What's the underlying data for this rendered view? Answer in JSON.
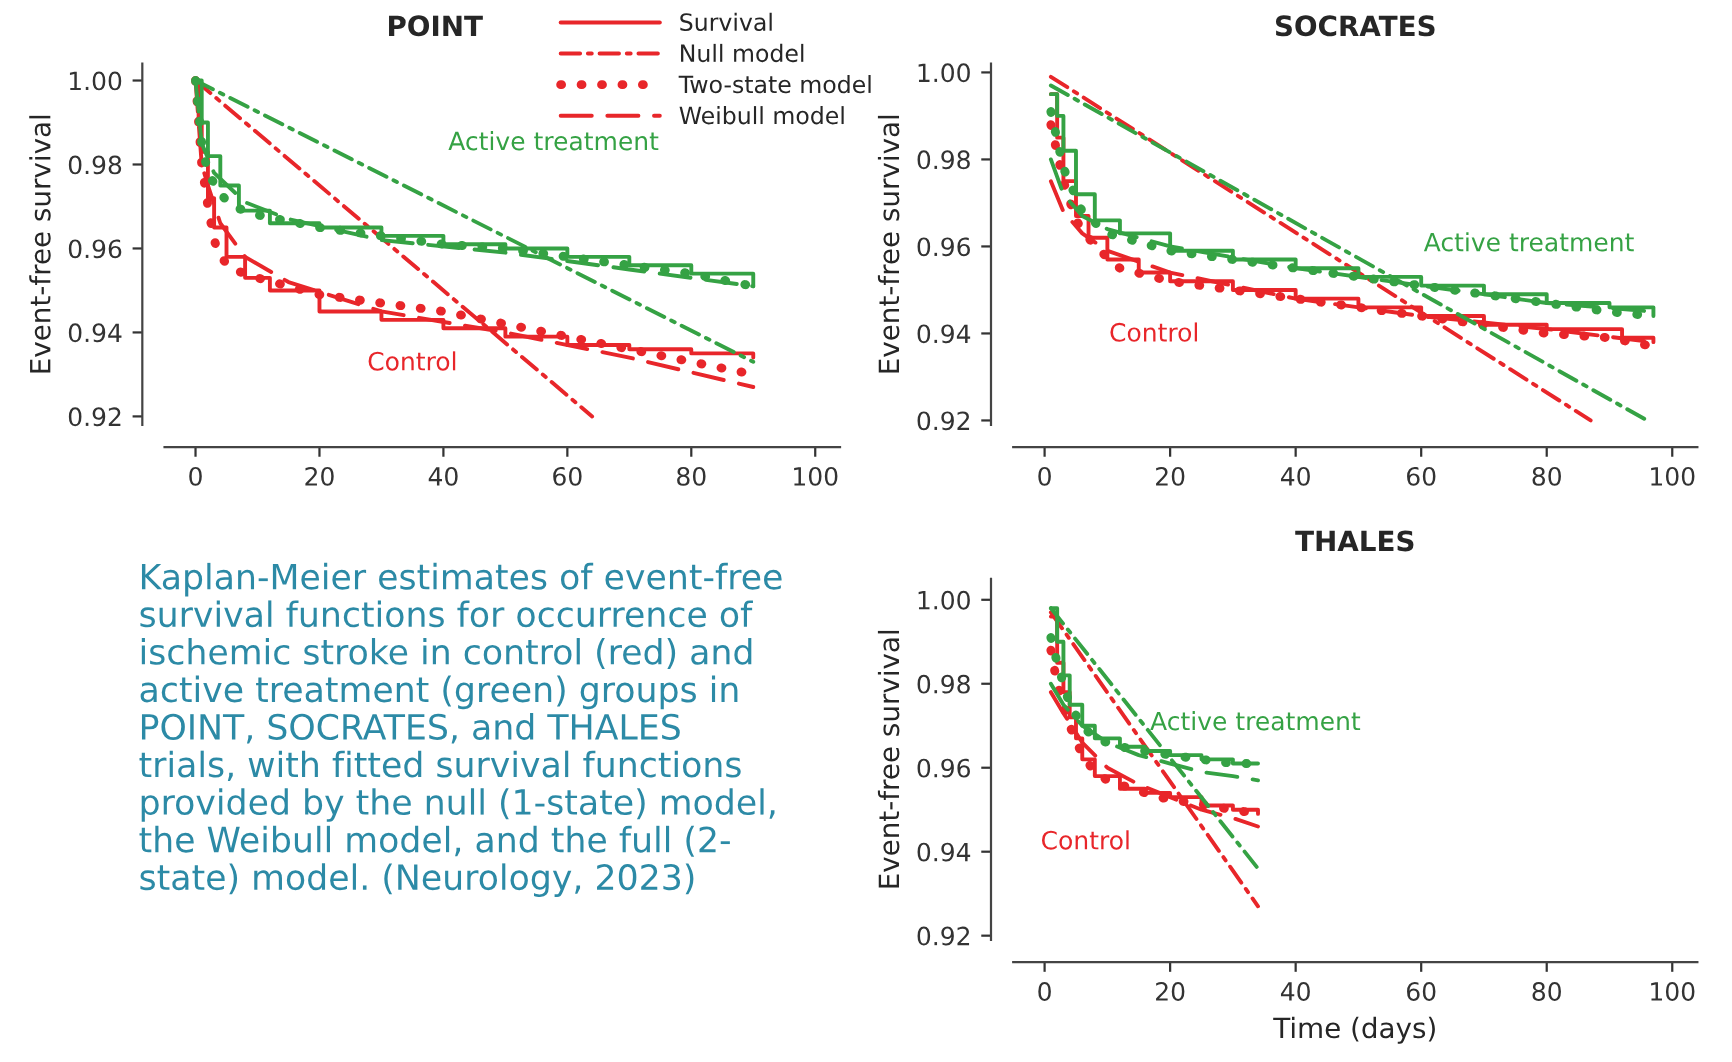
{
  "chart_data": [
    {
      "type": "line",
      "title": "POINT",
      "ylabel": "Event-free survival",
      "xlim": [
        -5,
        104
      ],
      "ylim": [
        0.918,
        1.004
      ],
      "xticks": [
        0,
        20,
        40,
        60,
        80,
        100
      ],
      "yticks": [
        {
          "value": 0.92,
          "label": "0.92"
        },
        {
          "value": 0.94,
          "label": "0.94"
        },
        {
          "value": 0.96,
          "label": "0.96"
        },
        {
          "value": 0.98,
          "label": "0.98"
        },
        {
          "value": 1.0,
          "label": "1.00"
        }
      ],
      "legend": "top right",
      "annotations": [
        "Active treatment",
        "Control"
      ],
      "series": [
        {
          "name": "Survival",
          "type": "step",
          "line_style": "solid",
          "color": "#e8262a",
          "x": [
            0,
            0.5,
            1,
            2,
            3,
            5,
            8,
            12,
            20,
            30,
            40,
            50,
            60,
            70,
            80,
            90
          ],
          "values": [
            1.0,
            0.99,
            0.983,
            0.972,
            0.965,
            0.958,
            0.953,
            0.95,
            0.945,
            0.943,
            0.941,
            0.939,
            0.937,
            0.936,
            0.935,
            0.934
          ]
        },
        {
          "name": "Null model",
          "type": "line",
          "line_style": "dashdot",
          "color": "#e8262a",
          "x": [
            0,
            64
          ],
          "values": [
            1.0,
            0.92
          ]
        },
        {
          "name": "Two-state model",
          "type": "line",
          "line_style": "dotted",
          "color": "#e8262a",
          "x": [
            0,
            1,
            2,
            3,
            4,
            6,
            10,
            20,
            30,
            40,
            50,
            60,
            70,
            80,
            90
          ],
          "values": [
            1.0,
            0.98,
            0.97,
            0.962,
            0.958,
            0.955,
            0.953,
            0.949,
            0.947,
            0.945,
            0.942,
            0.939,
            0.936,
            0.933,
            0.93
          ]
        },
        {
          "name": "Weibull model",
          "type": "line",
          "line_style": "dashed",
          "color": "#e8262a",
          "x": [
            0,
            1,
            2,
            4,
            8,
            15,
            30,
            50,
            70,
            90
          ],
          "values": [
            1.0,
            0.98,
            0.975,
            0.966,
            0.958,
            0.952,
            0.945,
            0.94,
            0.934,
            0.927
          ]
        },
        {
          "type": "step",
          "line_style": "solid",
          "color": "#35a244",
          "x": [
            0,
            1,
            2,
            4,
            7,
            12,
            20,
            30,
            40,
            50,
            60,
            70,
            80,
            90
          ],
          "values": [
            1.0,
            0.99,
            0.982,
            0.975,
            0.969,
            0.966,
            0.965,
            0.963,
            0.961,
            0.96,
            0.958,
            0.956,
            0.954,
            0.951
          ]
        },
        {
          "type": "line",
          "line_style": "dashdot",
          "color": "#35a244",
          "x": [
            0,
            90
          ],
          "values": [
            1.0,
            0.933
          ]
        },
        {
          "type": "line",
          "line_style": "dotted",
          "color": "#35a244",
          "x": [
            0,
            1,
            2,
            4,
            6,
            10,
            20,
            30,
            40,
            50,
            60,
            70,
            80,
            90
          ],
          "values": [
            1.0,
            0.985,
            0.978,
            0.973,
            0.97,
            0.968,
            0.965,
            0.963,
            0.961,
            0.96,
            0.958,
            0.956,
            0.954,
            0.951
          ]
        },
        {
          "type": "line",
          "line_style": "dashed",
          "color": "#35a244",
          "x": [
            0,
            1,
            3,
            8,
            15,
            30,
            50,
            70,
            90
          ],
          "values": [
            1.0,
            0.985,
            0.978,
            0.971,
            0.967,
            0.962,
            0.959,
            0.955,
            0.951
          ]
        }
      ]
    },
    {
      "type": "line",
      "title": "SOCRATES",
      "ylabel": "Event-free survival",
      "xlim": [
        -5,
        104
      ],
      "ylim": [
        0.919,
        1.002
      ],
      "xticks": [
        0,
        20,
        40,
        60,
        80,
        100
      ],
      "yticks": [
        {
          "value": 0.92,
          "label": "0.92"
        },
        {
          "value": 0.94,
          "label": "0.94"
        },
        {
          "value": 0.96,
          "label": "0.96"
        },
        {
          "value": 0.98,
          "label": "0.98"
        },
        {
          "value": 1.0,
          "label": "1.00"
        }
      ],
      "annotations": [
        "Active treatment",
        "Control"
      ],
      "series": [
        {
          "type": "step",
          "line_style": "solid",
          "color": "#e8262a",
          "x": [
            1,
            2,
            3,
            5,
            7,
            10,
            15,
            20,
            30,
            40,
            50,
            60,
            70,
            80,
            90,
            92,
            97
          ],
          "values": [
            0.995,
            0.985,
            0.975,
            0.967,
            0.962,
            0.957,
            0.954,
            0.952,
            0.95,
            0.948,
            0.946,
            0.944,
            0.942,
            0.941,
            0.941,
            0.939,
            0.938
          ]
        },
        {
          "type": "line",
          "line_style": "dashdot",
          "color": "#e8262a",
          "x": [
            1,
            87
          ],
          "values": [
            0.999,
            0.92
          ]
        },
        {
          "type": "line",
          "line_style": "dotted",
          "color": "#e8262a",
          "x": [
            1,
            3,
            5,
            8,
            12,
            20,
            30,
            40,
            50,
            60,
            70,
            80,
            90,
            97
          ],
          "values": [
            0.988,
            0.975,
            0.966,
            0.96,
            0.955,
            0.952,
            0.95,
            0.948,
            0.946,
            0.944,
            0.942,
            0.94,
            0.939,
            0.937
          ]
        },
        {
          "type": "line",
          "line_style": "dashed",
          "color": "#e8262a",
          "x": [
            1,
            3,
            6,
            10,
            20,
            40,
            60,
            80,
            97
          ],
          "values": [
            0.975,
            0.968,
            0.963,
            0.959,
            0.954,
            0.948,
            0.944,
            0.941,
            0.938
          ]
        },
        {
          "type": "step",
          "line_style": "solid",
          "color": "#35a244",
          "x": [
            1,
            2,
            3,
            5,
            8,
            12,
            20,
            30,
            40,
            50,
            60,
            70,
            80,
            90,
            97
          ],
          "values": [
            0.995,
            0.99,
            0.982,
            0.972,
            0.966,
            0.963,
            0.959,
            0.957,
            0.955,
            0.953,
            0.951,
            0.949,
            0.947,
            0.946,
            0.944
          ]
        },
        {
          "type": "line",
          "line_style": "dashdot",
          "color": "#35a244",
          "x": [
            1,
            96
          ],
          "values": [
            0.997,
            0.92
          ]
        },
        {
          "type": "line",
          "line_style": "dotted",
          "color": "#35a244",
          "x": [
            1,
            3,
            6,
            10,
            20,
            30,
            40,
            50,
            60,
            70,
            80,
            90,
            97
          ],
          "values": [
            0.991,
            0.978,
            0.968,
            0.963,
            0.959,
            0.957,
            0.955,
            0.953,
            0.951,
            0.949,
            0.947,
            0.945,
            0.944
          ]
        },
        {
          "type": "line",
          "line_style": "dashed",
          "color": "#35a244",
          "x": [
            1,
            3,
            6,
            10,
            20,
            40,
            60,
            80,
            97
          ],
          "values": [
            0.98,
            0.972,
            0.967,
            0.964,
            0.96,
            0.955,
            0.951,
            0.947,
            0.945
          ]
        }
      ]
    },
    {
      "type": "line",
      "title": "THALES",
      "xlabel": "Time (days)",
      "ylabel": "Event-free survival",
      "xlim": [
        -5,
        104
      ],
      "ylim": [
        0.919,
        1.005
      ],
      "xticks": [
        0,
        20,
        40,
        60,
        80,
        100
      ],
      "yticks": [
        {
          "value": 0.92,
          "label": "0.92"
        },
        {
          "value": 0.94,
          "label": "0.94"
        },
        {
          "value": 0.96,
          "label": "0.96"
        },
        {
          "value": 0.98,
          "label": "0.98"
        },
        {
          "value": 1.0,
          "label": "1.00"
        }
      ],
      "annotations": [
        "Active treatment",
        "Control"
      ],
      "series": [
        {
          "type": "step",
          "line_style": "solid",
          "color": "#e8262a",
          "x": [
            1,
            2,
            3,
            4,
            5,
            6,
            8,
            12,
            16,
            20,
            25,
            30,
            34
          ],
          "values": [
            0.996,
            0.985,
            0.978,
            0.972,
            0.967,
            0.962,
            0.958,
            0.955,
            0.954,
            0.953,
            0.951,
            0.95,
            0.949
          ]
        },
        {
          "type": "line",
          "line_style": "dashdot",
          "color": "#e8262a",
          "x": [
            1,
            34
          ],
          "values": [
            0.997,
            0.927
          ]
        },
        {
          "type": "line",
          "line_style": "dotted",
          "color": "#e8262a",
          "x": [
            1,
            2,
            4,
            6,
            8,
            10,
            14,
            18,
            22,
            26,
            30,
            34
          ],
          "values": [
            0.988,
            0.98,
            0.97,
            0.963,
            0.959,
            0.957,
            0.955,
            0.953,
            0.952,
            0.951,
            0.95,
            0.949
          ]
        },
        {
          "type": "line",
          "line_style": "dashed",
          "color": "#e8262a",
          "x": [
            1,
            3,
            6,
            10,
            15,
            20,
            25,
            30,
            34
          ],
          "values": [
            0.978,
            0.973,
            0.966,
            0.96,
            0.956,
            0.953,
            0.95,
            0.948,
            0.946
          ]
        },
        {
          "type": "step",
          "line_style": "solid",
          "color": "#35a244",
          "x": [
            1,
            2,
            3,
            4,
            6,
            8,
            12,
            16,
            20,
            25,
            30,
            34
          ],
          "values": [
            0.998,
            0.99,
            0.982,
            0.975,
            0.97,
            0.967,
            0.965,
            0.964,
            0.963,
            0.962,
            0.961,
            0.961
          ]
        },
        {
          "type": "line",
          "line_style": "dashdot",
          "color": "#35a244",
          "x": [
            1,
            34
          ],
          "values": [
            0.998,
            0.936
          ]
        },
        {
          "type": "line",
          "line_style": "dotted",
          "color": "#35a244",
          "x": [
            1,
            2,
            4,
            6,
            8,
            12,
            16,
            20,
            25,
            30,
            34
          ],
          "values": [
            0.991,
            0.985,
            0.975,
            0.97,
            0.967,
            0.965,
            0.964,
            0.963,
            0.962,
            0.961,
            0.961
          ]
        },
        {
          "type": "line",
          "line_style": "dashed",
          "color": "#35a244",
          "x": [
            1,
            3,
            6,
            10,
            15,
            20,
            25,
            30,
            34
          ],
          "values": [
            0.98,
            0.975,
            0.97,
            0.966,
            0.963,
            0.961,
            0.959,
            0.958,
            0.957
          ]
        }
      ]
    },
    {
      "type": "other",
      "annotations": [
        "Kaplan-Meier estimates of event-free\nsurvival functions for occurrence of\nischemic stroke in control (red) and\nactive treatment (green) groups in\nPOINT, SOCRATES, and THALES\ntrials, with fitted survival functions\nprovided by the null (1-state) model,\nthe Weibull model, and the full (2-\nstate) model. (Neurology, 2023)"
      ]
    }
  ]
}
